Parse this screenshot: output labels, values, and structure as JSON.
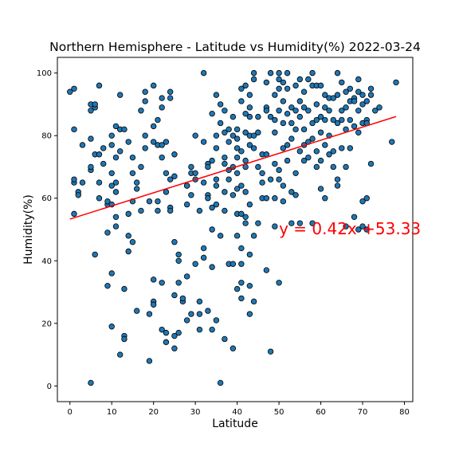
{
  "chart_data": {
    "type": "scatter",
    "title": "Northern Hemisphere - Latitude vs Humidity(%) 2022-03-24",
    "xlabel": "Latitude",
    "ylabel": "Humidity(%)",
    "xlim": [
      -3,
      82
    ],
    "ylim": [
      -5,
      105
    ],
    "xticks": [
      0,
      10,
      20,
      30,
      40,
      50,
      60,
      70,
      80
    ],
    "yticks": [
      0,
      20,
      40,
      60,
      80,
      100
    ],
    "grid": false,
    "point_color": "#1f77b4",
    "point_edge_color": "#000000",
    "regression": {
      "slope": 0.42,
      "intercept": 53.33,
      "x_range": [
        0,
        78
      ],
      "color": "#ff0000",
      "equation_label": "y = 0.42x +53.33",
      "label_x": 50,
      "label_y": 50
    },
    "points": [
      [
        0,
        94
      ],
      [
        1,
        95
      ],
      [
        1,
        82
      ],
      [
        1,
        65
      ],
      [
        1,
        55
      ],
      [
        1,
        66
      ],
      [
        2,
        62
      ],
      [
        2,
        61
      ],
      [
        3,
        65
      ],
      [
        3,
        77
      ],
      [
        5,
        1
      ],
      [
        5,
        90
      ],
      [
        5,
        88
      ],
      [
        5,
        79
      ],
      [
        5,
        69
      ],
      [
        5,
        70
      ],
      [
        6,
        89
      ],
      [
        6,
        90
      ],
      [
        6,
        74
      ],
      [
        6,
        42
      ],
      [
        7,
        96
      ],
      [
        7,
        74
      ],
      [
        7,
        60
      ],
      [
        7,
        65
      ],
      [
        8,
        71
      ],
      [
        8,
        76
      ],
      [
        9,
        58
      ],
      [
        9,
        59
      ],
      [
        9,
        49
      ],
      [
        9,
        32
      ],
      [
        10,
        80
      ],
      [
        10,
        77
      ],
      [
        10,
        68
      ],
      [
        10,
        64
      ],
      [
        10,
        58
      ],
      [
        10,
        36
      ],
      [
        10,
        19
      ],
      [
        11,
        83
      ],
      [
        11,
        73
      ],
      [
        11,
        65
      ],
      [
        11,
        62
      ],
      [
        11,
        51
      ],
      [
        11,
        54
      ],
      [
        12,
        10
      ],
      [
        12,
        82
      ],
      [
        12,
        75
      ],
      [
        12,
        93
      ],
      [
        13,
        16
      ],
      [
        13,
        82
      ],
      [
        13,
        31
      ],
      [
        13,
        15
      ],
      [
        14,
        78
      ],
      [
        14,
        55
      ],
      [
        14,
        48
      ],
      [
        14,
        43
      ],
      [
        15,
        73
      ],
      [
        15,
        68
      ],
      [
        15,
        59
      ],
      [
        15,
        46
      ],
      [
        16,
        63
      ],
      [
        16,
        65
      ],
      [
        16,
        24
      ],
      [
        17,
        88
      ],
      [
        17,
        56
      ],
      [
        17,
        70
      ],
      [
        18,
        91
      ],
      [
        18,
        94
      ],
      [
        18,
        80
      ],
      [
        18,
        76
      ],
      [
        19,
        59
      ],
      [
        19,
        8
      ],
      [
        19,
        23
      ],
      [
        20,
        96
      ],
      [
        20,
        83
      ],
      [
        20,
        78
      ],
      [
        20,
        34
      ],
      [
        20,
        27
      ],
      [
        20,
        26
      ],
      [
        21,
        85
      ],
      [
        21,
        77
      ],
      [
        21,
        59
      ],
      [
        21,
        56
      ],
      [
        22,
        92
      ],
      [
        22,
        89
      ],
      [
        22,
        77
      ],
      [
        22,
        73
      ],
      [
        22,
        33
      ],
      [
        22,
        18
      ],
      [
        23,
        17
      ],
      [
        23,
        62
      ],
      [
        23,
        14
      ],
      [
        23,
        68
      ],
      [
        23,
        78
      ],
      [
        24,
        94
      ],
      [
        24,
        92
      ],
      [
        24,
        66
      ],
      [
        24,
        57
      ],
      [
        24,
        56
      ],
      [
        25,
        74
      ],
      [
        25,
        67
      ],
      [
        25,
        46
      ],
      [
        25,
        29
      ],
      [
        25,
        16
      ],
      [
        25,
        12
      ],
      [
        26,
        42
      ],
      [
        26,
        40
      ],
      [
        26,
        33
      ],
      [
        26,
        17
      ],
      [
        27,
        27
      ],
      [
        27,
        28
      ],
      [
        28,
        64
      ],
      [
        28,
        64
      ],
      [
        28,
        58
      ],
      [
        28,
        35
      ],
      [
        28,
        21
      ],
      [
        29,
        70
      ],
      [
        29,
        68
      ],
      [
        29,
        61
      ],
      [
        29,
        23
      ],
      [
        30,
        80
      ],
      [
        30,
        68
      ],
      [
        30,
        66
      ],
      [
        30,
        39
      ],
      [
        31,
        56
      ],
      [
        31,
        27
      ],
      [
        31,
        23
      ],
      [
        31,
        18
      ],
      [
        32,
        100
      ],
      [
        32,
        78
      ],
      [
        32,
        65
      ],
      [
        32,
        41
      ],
      [
        32,
        44
      ],
      [
        33,
        71
      ],
      [
        33,
        70
      ],
      [
        33,
        61
      ],
      [
        33,
        60
      ],
      [
        33,
        24
      ],
      [
        34,
        87
      ],
      [
        34,
        72
      ],
      [
        34,
        57
      ],
      [
        34,
        50
      ],
      [
        34,
        38
      ],
      [
        34,
        18
      ],
      [
        35,
        93
      ],
      [
        35,
        80
      ],
      [
        35,
        76
      ],
      [
        35,
        66
      ],
      [
        35,
        64
      ],
      [
        35,
        58
      ],
      [
        35,
        21
      ],
      [
        36,
        90
      ],
      [
        36,
        84
      ],
      [
        36,
        48
      ],
      [
        36,
        1
      ],
      [
        37,
        88
      ],
      [
        37,
        81
      ],
      [
        37,
        73
      ],
      [
        37,
        71
      ],
      [
        37,
        62
      ],
      [
        37,
        56
      ],
      [
        37,
        15
      ],
      [
        38,
        82
      ],
      [
        38,
        78
      ],
      [
        38,
        69
      ],
      [
        38,
        66
      ],
      [
        38,
        39
      ],
      [
        39,
        86
      ],
      [
        39,
        80
      ],
      [
        39,
        70
      ],
      [
        39,
        61
      ],
      [
        39,
        39
      ],
      [
        39,
        12
      ],
      [
        40,
        82
      ],
      [
        40,
        79
      ],
      [
        40,
        76
      ],
      [
        40,
        73
      ],
      [
        40,
        68
      ],
      [
        40,
        63
      ],
      [
        40,
        55
      ],
      [
        40,
        48
      ],
      [
        40,
        31
      ],
      [
        41,
        95
      ],
      [
        41,
        91
      ],
      [
        41,
        75
      ],
      [
        41,
        64
      ],
      [
        41,
        55
      ],
      [
        41,
        44
      ],
      [
        41,
        39
      ],
      [
        41,
        33
      ],
      [
        41,
        28
      ],
      [
        42,
        96
      ],
      [
        42,
        87
      ],
      [
        42,
        81
      ],
      [
        42,
        72
      ],
      [
        42,
        70
      ],
      [
        42,
        62
      ],
      [
        42,
        54
      ],
      [
        42,
        52
      ],
      [
        43,
        93
      ],
      [
        43,
        89
      ],
      [
        43,
        86
      ],
      [
        43,
        80
      ],
      [
        43,
        77
      ],
      [
        43,
        58
      ],
      [
        43,
        42
      ],
      [
        43,
        32
      ],
      [
        43,
        23
      ],
      [
        44,
        100
      ],
      [
        44,
        98
      ],
      [
        44,
        80
      ],
      [
        44,
        76
      ],
      [
        44,
        48
      ],
      [
        44,
        27
      ],
      [
        45,
        86
      ],
      [
        45,
        81
      ],
      [
        45,
        70
      ],
      [
        45,
        52
      ],
      [
        46,
        65
      ],
      [
        46,
        60
      ],
      [
        46,
        74
      ],
      [
        46,
        68
      ],
      [
        47,
        97
      ],
      [
        47,
        89
      ],
      [
        47,
        88
      ],
      [
        47,
        74
      ],
      [
        47,
        60
      ],
      [
        47,
        37
      ],
      [
        48,
        100
      ],
      [
        48,
        86
      ],
      [
        48,
        66
      ],
      [
        48,
        11
      ],
      [
        49,
        93
      ],
      [
        49,
        85
      ],
      [
        49,
        81
      ],
      [
        49,
        71
      ],
      [
        49,
        60
      ],
      [
        49,
        51
      ],
      [
        50,
        100
      ],
      [
        50,
        98
      ],
      [
        50,
        95
      ],
      [
        50,
        88
      ],
      [
        50,
        69
      ],
      [
        50,
        66
      ],
      [
        50,
        33
      ],
      [
        51,
        97
      ],
      [
        51,
        91
      ],
      [
        51,
        84
      ],
      [
        51,
        76
      ],
      [
        51,
        64
      ],
      [
        51,
        59
      ],
      [
        52,
        100
      ],
      [
        52,
        95
      ],
      [
        52,
        87
      ],
      [
        52,
        77
      ],
      [
        52,
        72
      ],
      [
        53,
        89
      ],
      [
        53,
        84
      ],
      [
        53,
        79
      ],
      [
        53,
        62
      ],
      [
        53,
        52
      ],
      [
        54,
        96
      ],
      [
        54,
        88
      ],
      [
        54,
        82
      ],
      [
        54,
        68
      ],
      [
        54,
        61
      ],
      [
        55,
        98
      ],
      [
        55,
        91
      ],
      [
        55,
        86
      ],
      [
        55,
        75
      ],
      [
        55,
        52
      ],
      [
        56,
        94
      ],
      [
        56,
        89
      ],
      [
        56,
        82
      ],
      [
        56,
        77
      ],
      [
        56,
        72
      ],
      [
        57,
        98
      ],
      [
        57,
        88
      ],
      [
        57,
        78
      ],
      [
        57,
        73
      ],
      [
        58,
        100
      ],
      [
        58,
        96
      ],
      [
        58,
        84
      ],
      [
        58,
        79
      ],
      [
        58,
        52
      ],
      [
        59,
        96
      ],
      [
        59,
        90
      ],
      [
        59,
        85
      ],
      [
        59,
        75
      ],
      [
        59,
        70
      ],
      [
        60,
        96
      ],
      [
        60,
        86
      ],
      [
        60,
        81
      ],
      [
        60,
        72
      ],
      [
        60,
        63
      ],
      [
        61,
        93
      ],
      [
        61,
        89
      ],
      [
        61,
        85
      ],
      [
        61,
        77
      ],
      [
        61,
        60
      ],
      [
        62,
        92
      ],
      [
        62,
        88
      ],
      [
        62,
        80
      ],
      [
        62,
        74
      ],
      [
        63,
        92
      ],
      [
        63,
        85
      ],
      [
        63,
        75
      ],
      [
        63,
        70
      ],
      [
        64,
        100
      ],
      [
        64,
        93
      ],
      [
        64,
        84
      ],
      [
        64,
        66
      ],
      [
        64,
        64
      ],
      [
        65,
        97
      ],
      [
        65,
        88
      ],
      [
        65,
        85
      ],
      [
        65,
        76
      ],
      [
        66,
        94
      ],
      [
        66,
        89
      ],
      [
        66,
        82
      ],
      [
        66,
        70
      ],
      [
        66,
        51
      ],
      [
        67,
        95
      ],
      [
        67,
        91
      ],
      [
        67,
        85
      ],
      [
        67,
        76
      ],
      [
        68,
        92
      ],
      [
        68,
        91
      ],
      [
        68,
        83
      ],
      [
        68,
        54
      ],
      [
        69,
        98
      ],
      [
        69,
        94
      ],
      [
        69,
        88
      ],
      [
        69,
        81
      ],
      [
        69,
        50
      ],
      [
        70,
        93
      ],
      [
        70,
        90
      ],
      [
        70,
        84
      ],
      [
        70,
        59
      ],
      [
        70,
        51
      ],
      [
        71,
        91
      ],
      [
        71,
        85
      ],
      [
        71,
        84
      ],
      [
        71,
        60
      ],
      [
        71,
        50
      ],
      [
        72,
        95
      ],
      [
        72,
        93
      ],
      [
        72,
        71
      ],
      [
        73,
        88
      ],
      [
        74,
        89
      ],
      [
        77,
        78
      ],
      [
        78,
        97
      ]
    ]
  }
}
